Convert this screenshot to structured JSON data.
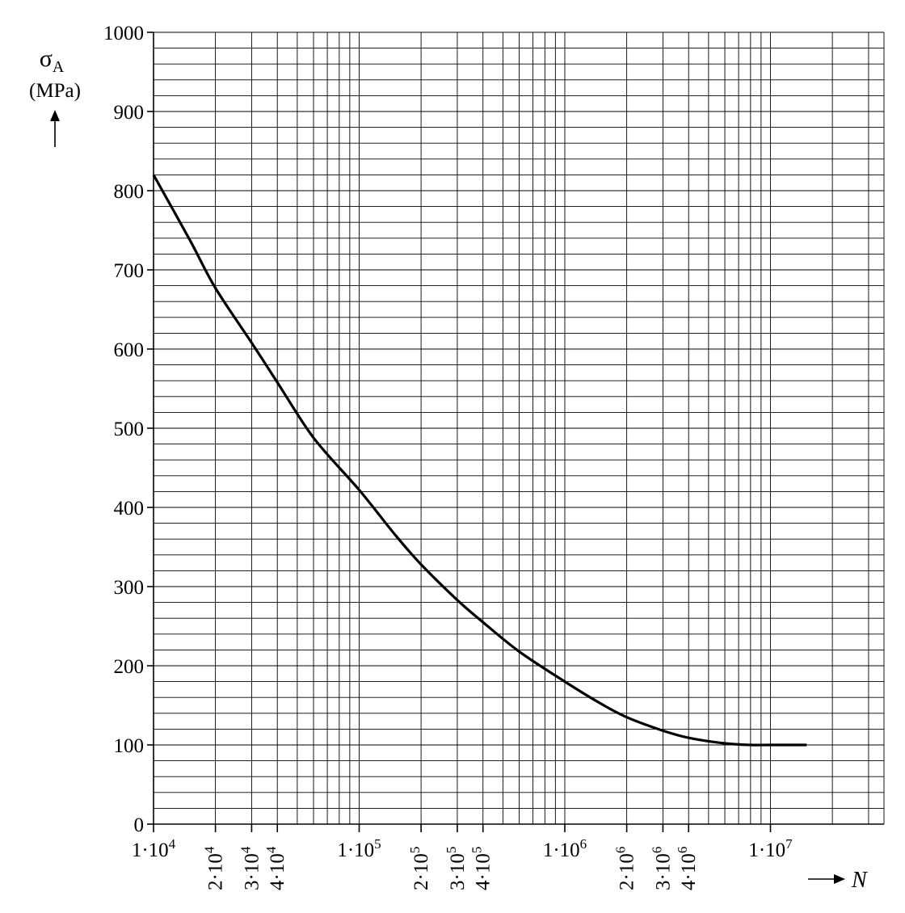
{
  "chart_data": {
    "type": "line",
    "x_scale": "log",
    "xlim": [
      10000,
      15000000
    ],
    "ylim": [
      0,
      1000
    ],
    "grid": true,
    "ylabel": {
      "symbol": "σ",
      "subscript": "A",
      "unit": "(MPa)"
    },
    "xlabel": "N",
    "y_ticks": [
      {
        "value": 0,
        "label": "0"
      },
      {
        "value": 100,
        "label": "100"
      },
      {
        "value": 200,
        "label": "200"
      },
      {
        "value": 300,
        "label": "300"
      },
      {
        "value": 400,
        "label": "400"
      },
      {
        "value": 500,
        "label": "500"
      },
      {
        "value": 600,
        "label": "600"
      },
      {
        "value": 700,
        "label": "700"
      },
      {
        "value": 800,
        "label": "800"
      },
      {
        "value": 900,
        "label": "900"
      },
      {
        "value": 1000,
        "label": "1000"
      }
    ],
    "x_ticks_major": [
      {
        "value": 10000,
        "label": "1·10",
        "exp": "4"
      },
      {
        "value": 100000,
        "label": "1·10",
        "exp": "5"
      },
      {
        "value": 1000000,
        "label": "1·10",
        "exp": "6"
      },
      {
        "value": 10000000,
        "label": "1·10",
        "exp": "7"
      }
    ],
    "x_ticks_minor": [
      {
        "value": 20000,
        "label": "2·10",
        "exp": "4"
      },
      {
        "value": 30000,
        "label": "3·10",
        "exp": "4"
      },
      {
        "value": 40000,
        "label": "4·10",
        "exp": "4"
      },
      {
        "value": 200000,
        "label": "2·10",
        "exp": "5"
      },
      {
        "value": 300000,
        "label": "3·10",
        "exp": "5"
      },
      {
        "value": 400000,
        "label": "4·10",
        "exp": "5"
      },
      {
        "value": 2000000,
        "label": "2·10",
        "exp": "6"
      },
      {
        "value": 3000000,
        "label": "3·10",
        "exp": "6"
      },
      {
        "value": 4000000,
        "label": "4·10",
        "exp": "6"
      }
    ],
    "series": [
      {
        "x": [
          10000,
          15000,
          20000,
          30000,
          40000,
          60000,
          100000,
          150000,
          200000,
          300000,
          400000,
          600000,
          1000000,
          1500000,
          2000000,
          3000000,
          4000000,
          6000000,
          8000000,
          10000000,
          15000000
        ],
        "y": [
          820,
          738,
          677,
          608,
          558,
          488,
          422,
          365,
          328,
          283,
          255,
          218,
          180,
          152,
          135,
          118,
          109,
          102,
          100,
          100,
          100
        ]
      }
    ]
  }
}
